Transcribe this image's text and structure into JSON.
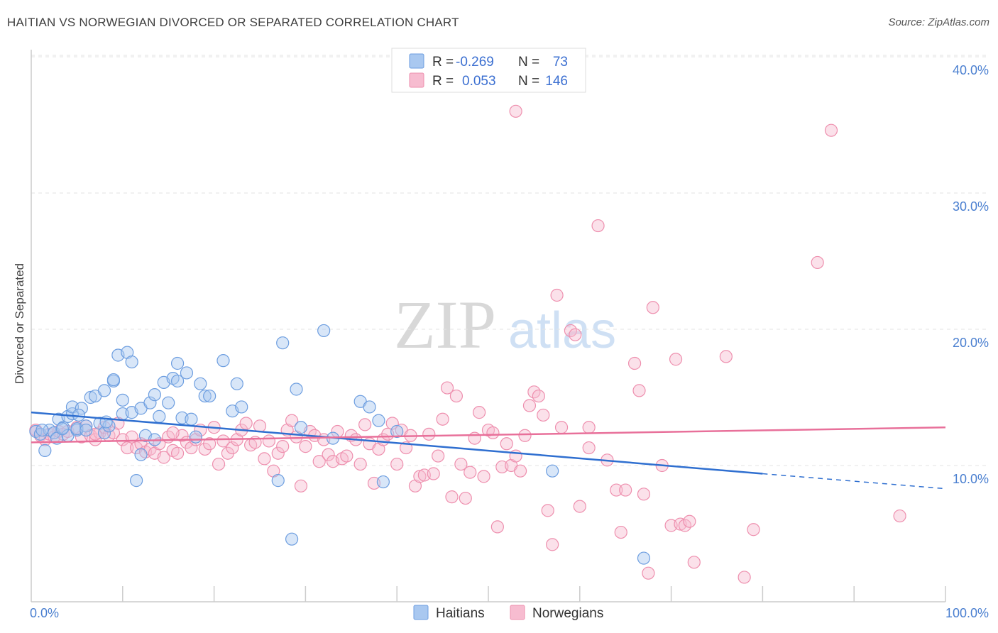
{
  "title": "HAITIAN VS NORWEGIAN DIVORCED OR SEPARATED CORRELATION CHART",
  "source": "Source: ZipAtlas.com",
  "watermark": {
    "zip": "ZIP",
    "atlas": "atlas"
  },
  "legend_top": [
    {
      "r_label": "R =",
      "r_value": "-0.269",
      "n_label": "N =",
      "n_value": "73",
      "color": "#a9c8f0",
      "stroke": "#6d9ee0"
    },
    {
      "r_label": "R =",
      "r_value": "0.053",
      "n_label": "N =",
      "n_value": "146",
      "color": "#f7bcd0",
      "stroke": "#ee8fae"
    }
  ],
  "legend_bottom": [
    {
      "label": "Haitians",
      "color": "#a9c8f0",
      "stroke": "#6d9ee0"
    },
    {
      "label": "Norwegians",
      "color": "#f7bcd0",
      "stroke": "#ee8fae"
    }
  ],
  "colors": {
    "haitian_line": "#2f6fd0",
    "norwegian_line": "#e8709a",
    "axis_text": "#4a7fd0",
    "grid": "#e3e3e3"
  },
  "chart_data": {
    "type": "scatter",
    "title": "HAITIAN VS NORWEGIAN DIVORCED OR SEPARATED CORRELATION CHART",
    "xlabel": "",
    "ylabel": "Divorced or Separated",
    "xlim": [
      0,
      100
    ],
    "ylim": [
      0,
      40
    ],
    "x_tick_labels": [
      "0.0%",
      "100.0%"
    ],
    "y_ticks": [
      10,
      20,
      30,
      40
    ],
    "y_tick_labels": [
      "10.0%",
      "20.0%",
      "30.0%",
      "40.0%"
    ],
    "grid": true,
    "legend_position": "top-center",
    "series": [
      {
        "name": "Haitians",
        "r": -0.269,
        "n": 73,
        "trend": {
          "x0": 0,
          "y0": 13.9,
          "x1": 80,
          "y1": 9.4,
          "dashed_to_x": 100,
          "dashed_to_y": 8.3
        },
        "points": [
          [
            0.5,
            12.5
          ],
          [
            1,
            12.3
          ],
          [
            1.5,
            11.1
          ],
          [
            2,
            12.6
          ],
          [
            2.5,
            12.4
          ],
          [
            3,
            13.4
          ],
          [
            3.5,
            12.8
          ],
          [
            4,
            12.2
          ],
          [
            4,
            13.6
          ],
          [
            4.5,
            13.8
          ],
          [
            4.5,
            14.3
          ],
          [
            5,
            12.6
          ],
          [
            5,
            12.7
          ],
          [
            5.5,
            14.2
          ],
          [
            6,
            12.9
          ],
          [
            6.5,
            15
          ],
          [
            7,
            15.1
          ],
          [
            7.5,
            13.1
          ],
          [
            8,
            12.4
          ],
          [
            8,
            15.5
          ],
          [
            8.5,
            12.9
          ],
          [
            9,
            16.2
          ],
          [
            9,
            16.3
          ],
          [
            9.5,
            18.1
          ],
          [
            10,
            13.8
          ],
          [
            10,
            14.8
          ],
          [
            10.5,
            18.3
          ],
          [
            11,
            17.6
          ],
          [
            11,
            13.9
          ],
          [
            11.5,
            8.9
          ],
          [
            12,
            10.8
          ],
          [
            12,
            14.2
          ],
          [
            12.5,
            12.2
          ],
          [
            13,
            14.6
          ],
          [
            13.5,
            11.9
          ],
          [
            13.5,
            15.2
          ],
          [
            14,
            13.6
          ],
          [
            14.5,
            16.1
          ],
          [
            15,
            14.6
          ],
          [
            15.5,
            16.4
          ],
          [
            16,
            17.5
          ],
          [
            16,
            16.2
          ],
          [
            16.5,
            13.5
          ],
          [
            17,
            16.8
          ],
          [
            17.5,
            13.4
          ],
          [
            18,
            12.1
          ],
          [
            18.5,
            16
          ],
          [
            19,
            15.1
          ],
          [
            19.5,
            15.1
          ],
          [
            21,
            17.7
          ],
          [
            22,
            14
          ],
          [
            22.5,
            16
          ],
          [
            23,
            14.3
          ],
          [
            27,
            8.9
          ],
          [
            27.5,
            19
          ],
          [
            28.5,
            4.6
          ],
          [
            29,
            15.6
          ],
          [
            29.5,
            12.8
          ],
          [
            33,
            12
          ],
          [
            32,
            19.9
          ],
          [
            36,
            14.7
          ],
          [
            37,
            14.3
          ],
          [
            38,
            13.3
          ],
          [
            38.5,
            8.8
          ],
          [
            40,
            12.5
          ],
          [
            57,
            9.6
          ],
          [
            67,
            3.2
          ],
          [
            1.2,
            12.6
          ],
          [
            2.8,
            12
          ],
          [
            6,
            12.6
          ],
          [
            3.4,
            12.7
          ],
          [
            5.2,
            13.7
          ],
          [
            8.2,
            13.2
          ]
        ]
      },
      {
        "name": "Norwegians",
        "r": 0.053,
        "n": 146,
        "trend": {
          "x0": 0,
          "y0": 11.7,
          "x1": 100,
          "y1": 12.8
        },
        "points": [
          [
            0.5,
            12.6
          ],
          [
            1,
            12.2
          ],
          [
            1.5,
            11.9
          ],
          [
            2,
            12.3
          ],
          [
            2.5,
            12.1
          ],
          [
            3,
            12.5
          ],
          [
            3.5,
            12.3
          ],
          [
            4,
            12.5
          ],
          [
            5,
            12.8
          ],
          [
            5.5,
            12.1
          ],
          [
            6,
            12.9
          ],
          [
            6.5,
            12.2
          ],
          [
            7,
            11.9
          ],
          [
            7.5,
            12.4
          ],
          [
            8,
            12.8
          ],
          [
            8.5,
            12.2
          ],
          [
            9,
            12.4
          ],
          [
            9.5,
            13.1
          ],
          [
            10,
            11.9
          ],
          [
            10.5,
            11.3
          ],
          [
            11,
            12.1
          ],
          [
            11.5,
            11.3
          ],
          [
            12,
            11.6
          ],
          [
            12.5,
            11
          ],
          [
            13,
            11.2
          ],
          [
            13.5,
            10.9
          ],
          [
            14,
            11.6
          ],
          [
            14.5,
            10.6
          ],
          [
            15,
            12.1
          ],
          [
            15.5,
            11.1
          ],
          [
            16,
            10.9
          ],
          [
            16.5,
            12.2
          ],
          [
            17,
            11.7
          ],
          [
            17.5,
            11.3
          ],
          [
            18,
            11.9
          ],
          [
            18.5,
            12.6
          ],
          [
            19,
            11.2
          ],
          [
            19.5,
            11.6
          ],
          [
            20,
            12.8
          ],
          [
            20.5,
            10.1
          ],
          [
            21,
            11.8
          ],
          [
            21.5,
            10.9
          ],
          [
            22,
            11.3
          ],
          [
            22.5,
            11.9
          ],
          [
            23,
            12.6
          ],
          [
            23.5,
            13.1
          ],
          [
            24,
            11.5
          ],
          [
            24.5,
            11.7
          ],
          [
            25,
            12.9
          ],
          [
            25.5,
            10.5
          ],
          [
            26,
            11.8
          ],
          [
            26.5,
            9.6
          ],
          [
            27,
            10.9
          ],
          [
            27.5,
            11.4
          ],
          [
            28,
            12.6
          ],
          [
            28.5,
            13.3
          ],
          [
            29,
            12.1
          ],
          [
            29.5,
            8.5
          ],
          [
            30,
            11.4
          ],
          [
            30.5,
            12.5
          ],
          [
            31,
            12.2
          ],
          [
            31.5,
            10.3
          ],
          [
            32,
            11.9
          ],
          [
            32.5,
            10.8
          ],
          [
            33,
            10.3
          ],
          [
            33.5,
            12.5
          ],
          [
            34,
            10.5
          ],
          [
            34.5,
            10.7
          ],
          [
            35,
            12.2
          ],
          [
            35.5,
            11.9
          ],
          [
            36,
            10.1
          ],
          [
            36.5,
            13
          ],
          [
            37,
            11.6
          ],
          [
            37.5,
            8.7
          ],
          [
            38,
            11.2
          ],
          [
            38.5,
            11.9
          ],
          [
            39,
            12.3
          ],
          [
            39.5,
            13.1
          ],
          [
            40,
            10.1
          ],
          [
            40.5,
            12.6
          ],
          [
            41,
            11.3
          ],
          [
            41.5,
            12.2
          ],
          [
            42,
            8.5
          ],
          [
            42.5,
            9.2
          ],
          [
            43,
            9.3
          ],
          [
            43.5,
            12.3
          ],
          [
            44,
            9.4
          ],
          [
            44.5,
            10.7
          ],
          [
            45,
            13.4
          ],
          [
            45.5,
            15.7
          ],
          [
            46,
            7.7
          ],
          [
            46.5,
            15.1
          ],
          [
            47,
            10.1
          ],
          [
            47.5,
            7.6
          ],
          [
            48,
            9.5
          ],
          [
            48.5,
            12
          ],
          [
            49,
            13.9
          ],
          [
            49.5,
            9.2
          ],
          [
            50,
            12.6
          ],
          [
            50.5,
            12.4
          ],
          [
            51,
            5.5
          ],
          [
            51.5,
            9.9
          ],
          [
            52,
            11.6
          ],
          [
            52.5,
            10
          ],
          [
            53,
            10.7
          ],
          [
            53.5,
            9.6
          ],
          [
            54,
            12.2
          ],
          [
            54.5,
            14.4
          ],
          [
            55,
            15.4
          ],
          [
            55.5,
            15.1
          ],
          [
            56,
            13.7
          ],
          [
            56.5,
            6.7
          ],
          [
            57,
            4.2
          ],
          [
            57.5,
            22.5
          ],
          [
            58,
            12.8
          ],
          [
            59,
            19.9
          ],
          [
            59.5,
            19.6
          ],
          [
            60,
            7
          ],
          [
            61,
            12.8
          ],
          [
            61,
            11.3
          ],
          [
            62,
            27.6
          ],
          [
            63,
            10.4
          ],
          [
            64,
            8.2
          ],
          [
            64.5,
            5.1
          ],
          [
            65,
            8.2
          ],
          [
            66,
            17.5
          ],
          [
            66.5,
            15.5
          ],
          [
            67,
            7.9
          ],
          [
            67.5,
            2.1
          ],
          [
            68,
            21.6
          ],
          [
            69,
            10
          ],
          [
            70,
            5.6
          ],
          [
            70.5,
            17.8
          ],
          [
            71,
            5.7
          ],
          [
            71.5,
            5.6
          ],
          [
            72,
            5.9
          ],
          [
            72.5,
            2.9
          ],
          [
            76,
            18
          ],
          [
            78,
            1.8
          ],
          [
            79,
            5.3
          ],
          [
            86,
            24.9
          ],
          [
            87.5,
            34.6
          ],
          [
            95,
            6.3
          ],
          [
            53,
            36
          ],
          [
            0.5,
            12.6
          ],
          [
            7,
            12.3
          ],
          [
            15.5,
            12.4
          ]
        ]
      }
    ]
  }
}
